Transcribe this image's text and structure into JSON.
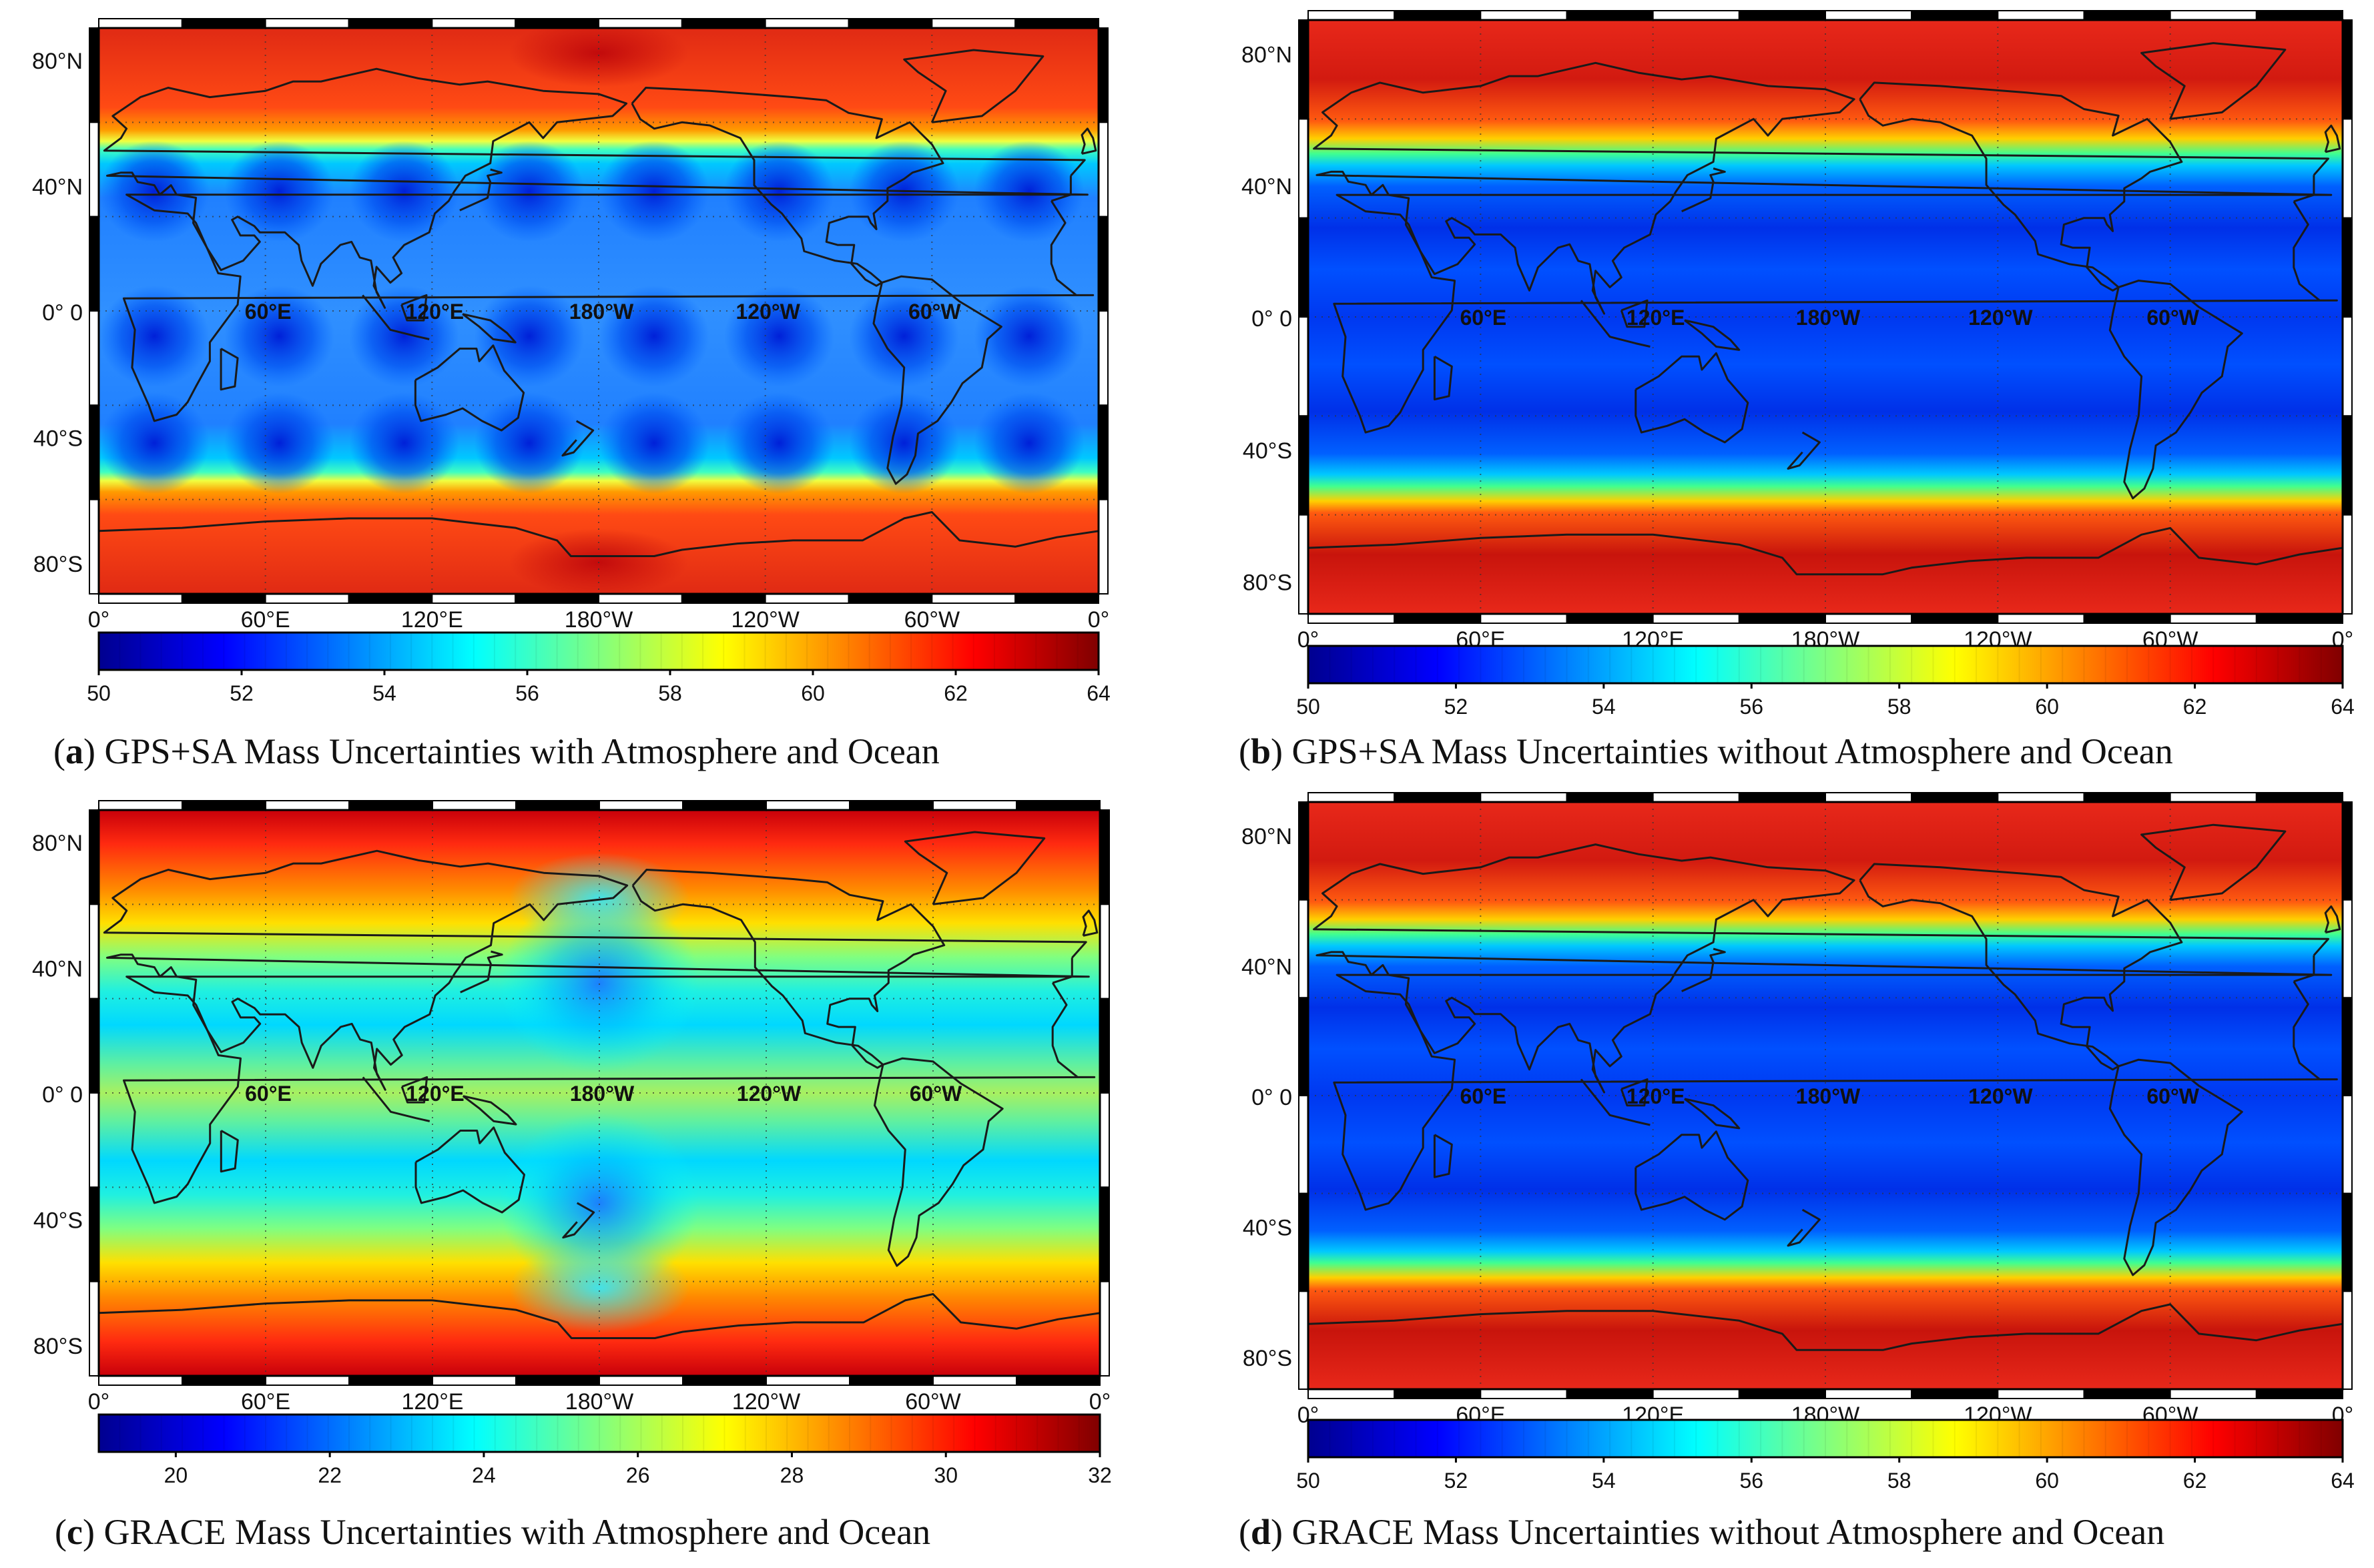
{
  "figure": {
    "panels": [
      {
        "id": "a",
        "letter": "a",
        "caption": "GPS+SA Mass Uncertainties with Atmosphere and Ocean",
        "lat_labels": [
          "80°N",
          "40°N",
          "0° 0",
          "40°S",
          "80°S"
        ],
        "lon_labels_bottom": [
          "0°",
          "60°E",
          "120°E",
          "180°W",
          "120°W",
          "60°W",
          "0°"
        ],
        "lon_labels_equator": [
          "60°E",
          "120°E",
          "180°W",
          "120°W",
          "60°W"
        ],
        "colorbar": {
          "min": 50,
          "max": 64,
          "ticks": [
            "50",
            "52",
            "54",
            "56",
            "58",
            "60",
            "62",
            "64"
          ]
        },
        "pattern": "blocky-low-mid-latitudes, high-polar-bands"
      },
      {
        "id": "b",
        "letter": "b",
        "caption": "GPS+SA Mass Uncertainties without Atmosphere and Ocean",
        "lat_labels": [
          "80°N",
          "40°N",
          "0° 0",
          "40°S",
          "80°S"
        ],
        "lon_labels_bottom": [
          "0°",
          "60°E",
          "120°E",
          "180°W",
          "120°W",
          "60°W",
          "0°"
        ],
        "lon_labels_equator": [
          "60°E",
          "120°E",
          "180°W",
          "120°W",
          "60°W"
        ],
        "colorbar": {
          "min": 50,
          "max": 64,
          "ticks": [
            "50",
            "52",
            "54",
            "56",
            "58",
            "60",
            "62",
            "64"
          ]
        },
        "pattern": "zonal-bands"
      },
      {
        "id": "c",
        "letter": "c",
        "caption": "GRACE Mass Uncertainties with Atmosphere and Ocean",
        "lat_labels": [
          "80°N",
          "40°N",
          "0° 0",
          "40°S",
          "80°S"
        ],
        "lon_labels_bottom": [
          "0°",
          "60°E",
          "120°E",
          "180°W",
          "120°W",
          "60°W",
          "0°"
        ],
        "lon_labels_equator": [
          "60°E",
          "120°E",
          "180°W",
          "120°W",
          "60°W"
        ],
        "colorbar": {
          "min": 19,
          "max": 32,
          "ticks": [
            "20",
            "22",
            "24",
            "26",
            "28",
            "30",
            "32"
          ]
        },
        "pattern": "equatorial-green-band, mid-latitude-cyan, polar-red"
      },
      {
        "id": "d",
        "letter": "d",
        "caption": "GRACE Mass Uncertainties without Atmosphere and Ocean",
        "lat_labels": [
          "80°N",
          "40°N",
          "0° 0",
          "40°S",
          "80°S"
        ],
        "lon_labels_bottom": [
          "0°",
          "60°E",
          "120°E",
          "180°W",
          "120°W",
          "60°W",
          "0°"
        ],
        "lon_labels_equator": [
          "60°E",
          "120°E",
          "180°W",
          "120°W",
          "60°W"
        ],
        "colorbar": {
          "min": 50,
          "max": 64,
          "ticks": [
            "50",
            "52",
            "54",
            "56",
            "58",
            "60",
            "62",
            "64"
          ]
        },
        "pattern": "zonal-bands"
      }
    ]
  },
  "colors": {
    "jet_stops": [
      "#00008f",
      "#0000ff",
      "#0080ff",
      "#00ffff",
      "#80ff80",
      "#ffff00",
      "#ff8000",
      "#ff0000",
      "#800000"
    ],
    "coastline": "#1a1a1a",
    "frame_dark": "#000000",
    "frame_light": "#ffffff"
  }
}
